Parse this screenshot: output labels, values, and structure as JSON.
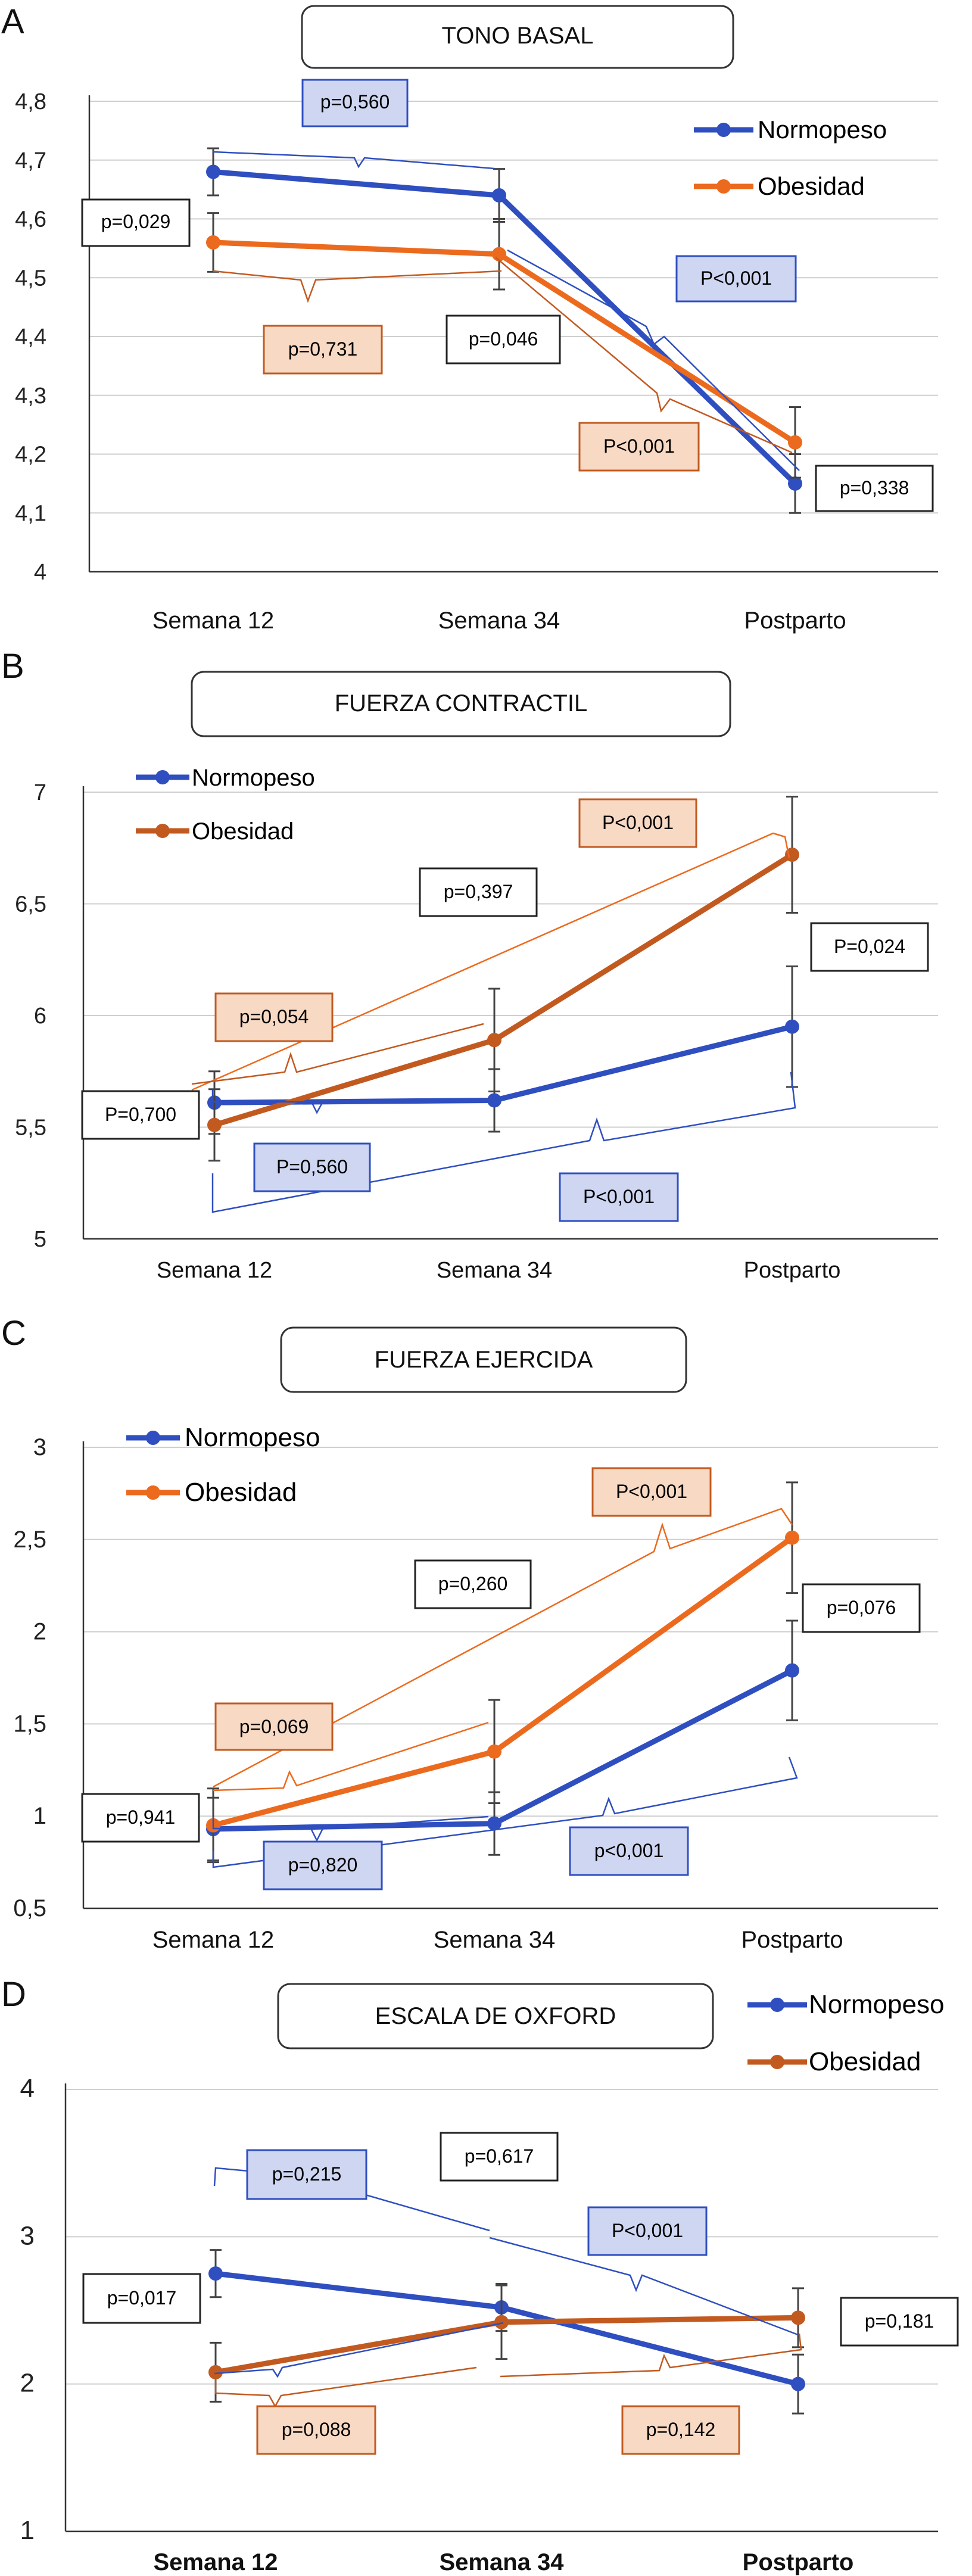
{
  "colors": {
    "normopeso": "#2f4fc0",
    "obesidad_a": "#ec6a1e",
    "obesidad_b": "#c25a20",
    "grid": "#cfcfcf",
    "axis": "#333333",
    "blue_box_fill": "#cfd6f2",
    "orange_box_fill": "#f7d9c4",
    "errorbar": "#444444"
  },
  "chart_data": [
    {
      "panel": "A",
      "type": "line",
      "title": "TONO BASAL",
      "categories": [
        "Semana 12",
        "Semana 34",
        "Postparto"
      ],
      "ylim": [
        4,
        4.8
      ],
      "yticks": [
        4,
        4.1,
        4.2,
        4.3,
        4.4,
        4.5,
        4.6,
        4.7,
        4.8
      ],
      "ytick_labels": [
        "4",
        "4,1",
        "4,2",
        "4,3",
        "4,4",
        "4,5",
        "4,6",
        "4,7",
        "4,8"
      ],
      "legend_position": "top-right",
      "series": [
        {
          "name": "Normopeso",
          "values": [
            4.68,
            4.64,
            4.15
          ],
          "err": [
            0.04,
            0.045,
            0.05
          ]
        },
        {
          "name": "Obesidad",
          "values": [
            4.56,
            4.54,
            4.22
          ],
          "err": [
            0.05,
            0.06,
            0.06
          ]
        }
      ],
      "annotations": [
        {
          "text": "p=0,560",
          "style": "blue"
        },
        {
          "text": "p=0,029",
          "style": "plain"
        },
        {
          "text": "p=0,731",
          "style": "orange"
        },
        {
          "text": "p=0,046",
          "style": "plain"
        },
        {
          "text": "P<0,001",
          "style": "blue"
        },
        {
          "text": "P<0,001",
          "style": "orange"
        },
        {
          "text": "p=0,338",
          "style": "plain"
        }
      ]
    },
    {
      "panel": "B",
      "type": "line",
      "title": "FUERZA CONTRACTIL",
      "categories": [
        "Semana 12",
        "Semana 34",
        "Postparto"
      ],
      "ylim": [
        5,
        7
      ],
      "yticks": [
        5,
        5.5,
        6,
        6.5,
        7
      ],
      "ytick_labels": [
        "5",
        "5,5",
        "6",
        "6,5",
        "7"
      ],
      "legend_position": "top-left",
      "series": [
        {
          "name": "Normopeso",
          "values": [
            5.61,
            5.62,
            5.95
          ],
          "err": [
            0.14,
            0.14,
            0.27
          ]
        },
        {
          "name": "Obesidad",
          "values": [
            5.51,
            5.89,
            6.72
          ],
          "err": [
            0.16,
            0.23,
            0.26
          ]
        }
      ],
      "annotations": [
        {
          "text": "P<0,001",
          "style": "orange"
        },
        {
          "text": "p=0,397",
          "style": "plain"
        },
        {
          "text": "P=0,024",
          "style": "plain"
        },
        {
          "text": "p=0,054",
          "style": "orange"
        },
        {
          "text": "P=0,700",
          "style": "plain"
        },
        {
          "text": "P=0,560",
          "style": "blue"
        },
        {
          "text": "P<0,001",
          "style": "blue"
        }
      ]
    },
    {
      "panel": "C",
      "type": "line",
      "title": "FUERZA EJERCIDA",
      "categories": [
        "Semana 12",
        "Semana 34",
        "Postparto"
      ],
      "ylim": [
        0.5,
        3
      ],
      "yticks": [
        0.5,
        1,
        1.5,
        2,
        2.5,
        3
      ],
      "ytick_labels": [
        "0,5",
        "1",
        "1,5",
        "2",
        "2,5",
        "3"
      ],
      "legend_position": "top-left",
      "series": [
        {
          "name": "Normopeso",
          "values": [
            0.93,
            0.96,
            1.79
          ],
          "err": [
            0.17,
            0.17,
            0.27
          ]
        },
        {
          "name": "Obesidad",
          "values": [
            0.95,
            1.35,
            2.51
          ],
          "err": [
            0.2,
            0.28,
            0.3
          ]
        }
      ],
      "annotations": [
        {
          "text": "P<0,001",
          "style": "orange"
        },
        {
          "text": "p=0,260",
          "style": "plain"
        },
        {
          "text": "p=0,076",
          "style": "plain"
        },
        {
          "text": "p=0,069",
          "style": "orange"
        },
        {
          "text": "p=0,941",
          "style": "plain"
        },
        {
          "text": "p=0,820",
          "style": "blue"
        },
        {
          "text": "p<0,001",
          "style": "blue"
        }
      ]
    },
    {
      "panel": "D",
      "type": "line",
      "title": "ESCALA DE OXFORD",
      "categories": [
        "Semana 12",
        "Semana 34",
        "Postparto"
      ],
      "ylim": [
        1,
        4
      ],
      "yticks": [
        1,
        2,
        3,
        4
      ],
      "ytick_labels": [
        "1",
        "2",
        "3",
        "4"
      ],
      "legend_position": "top-right",
      "series": [
        {
          "name": "Normopeso",
          "values": [
            2.75,
            2.52,
            2.0
          ],
          "err": [
            0.16,
            0.16,
            0.2
          ]
        },
        {
          "name": "Obesidad",
          "values": [
            2.08,
            2.42,
            2.45
          ],
          "err": [
            0.2,
            0.25,
            0.2
          ]
        }
      ],
      "annotations": [
        {
          "text": "p=0,215",
          "style": "blue"
        },
        {
          "text": "p=0,617",
          "style": "plain"
        },
        {
          "text": "P<0,001",
          "style": "blue"
        },
        {
          "text": "p=0,017",
          "style": "plain"
        },
        {
          "text": "p=0,181",
          "style": "plain"
        },
        {
          "text": "p=0,088",
          "style": "orange"
        },
        {
          "text": "p=0,142",
          "style": "orange"
        }
      ]
    }
  ]
}
